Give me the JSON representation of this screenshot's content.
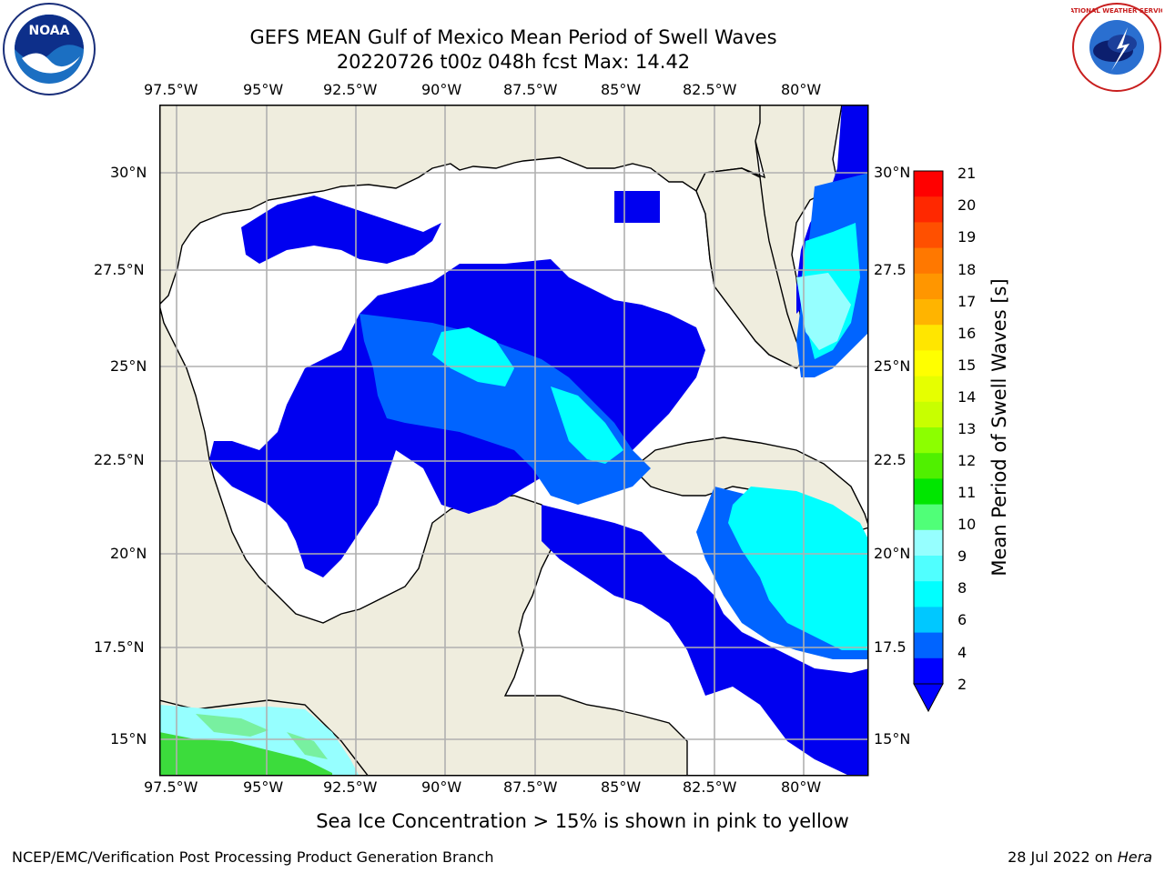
{
  "header": {
    "title_line1": "GEFS MEAN Gulf of Mexico Mean Period of Swell Waves",
    "title_line2": "20220726 t00z 048h fcst   Max: 14.42"
  },
  "logos": {
    "left": "NOAA",
    "right": "NATIONAL WEATHER SERVICE"
  },
  "map": {
    "lon_labels": [
      "97.5°W",
      "95°W",
      "92.5°W",
      "90°W",
      "87.5°W",
      "85°W",
      "82.5°W",
      "80°W"
    ],
    "lat_labels_left": [
      "30°N",
      "27.5°N",
      "25°N",
      "22.5°N",
      "20°N",
      "17.5°N",
      "15°N"
    ],
    "lat_labels_right": [
      "30°N",
      "27.5",
      "25°N",
      "22.5",
      "20°N",
      "17.5",
      "15°N"
    ],
    "land_color": "#efedde",
    "grid_color": "#b0b0b0"
  },
  "colorbar": {
    "label": "Mean Period of Swell Waves [s]",
    "ticks": [
      "21",
      "20",
      "19",
      "18",
      "17",
      "16",
      "15",
      "14",
      "13",
      "12",
      "11",
      "10",
      "9",
      "8",
      "6",
      "4",
      "2"
    ],
    "colors": [
      "#ff0000",
      "#ff2800",
      "#ff5000",
      "#ff7800",
      "#ff9600",
      "#ffb400",
      "#ffe600",
      "#ffff00",
      "#e6ff00",
      "#c8ff00",
      "#8cff00",
      "#50f000",
      "#00e600",
      "#50ff78",
      "#96ffff",
      "#50ffff",
      "#00ffff",
      "#00c8ff",
      "#0064ff",
      "#0000ff"
    ]
  },
  "footer": {
    "note": "Sea Ice Concentration > 15% is shown in pink to yellow",
    "credit": "NCEP/EMC/Verification Post Processing Product Generation Branch",
    "date_prefix": "28 Jul 2022 on ",
    "date_host": "Hera"
  }
}
